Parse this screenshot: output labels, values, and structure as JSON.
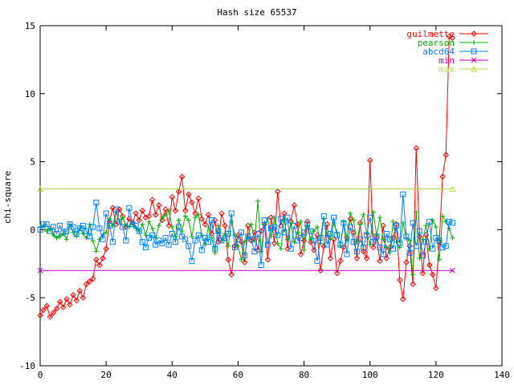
{
  "chart_data": {
    "type": "line",
    "title": "Hash size 65537",
    "xlabel": "",
    "ylabel": "chi-square",
    "xlim": [
      0,
      140
    ],
    "ylim": [
      -10,
      15
    ],
    "xticks": [
      0,
      20,
      40,
      60,
      80,
      100,
      120,
      140
    ],
    "yticks": [
      -10,
      -5,
      0,
      5,
      10,
      15
    ],
    "grid": false,
    "legend_position": "top-right",
    "series": [
      {
        "name": "guilmette",
        "color": "#ff0000",
        "marker": "diamond",
        "x": [
          0,
          1,
          2,
          3,
          4,
          5,
          6,
          7,
          8,
          9,
          10,
          11,
          12,
          13,
          14,
          15,
          16,
          17,
          18,
          19,
          20,
          21,
          22,
          23,
          24,
          25,
          26,
          27,
          28,
          29,
          30,
          31,
          32,
          33,
          34,
          35,
          36,
          37,
          38,
          39,
          40,
          41,
          42,
          43,
          44,
          45,
          46,
          47,
          48,
          49,
          50,
          51,
          52,
          53,
          54,
          55,
          56,
          57,
          58,
          59,
          60,
          61,
          62,
          63,
          64,
          65,
          66,
          67,
          68,
          69,
          70,
          71,
          72,
          73,
          74,
          75,
          76,
          77,
          78,
          79,
          80,
          81,
          82,
          83,
          84,
          85,
          86,
          87,
          88,
          89,
          90,
          91,
          92,
          93,
          94,
          95,
          96,
          97,
          98,
          99,
          100,
          101,
          102,
          103,
          104,
          105,
          106,
          107,
          108,
          109,
          110,
          111,
          112,
          113,
          114,
          115,
          116,
          117,
          118,
          119,
          120,
          121,
          122,
          123,
          124,
          125
        ],
        "y": [
          -6.3,
          -5.9,
          -5.6,
          -6.4,
          -6.1,
          -5.8,
          -5.3,
          -5.7,
          -5.1,
          -5.5,
          -4.8,
          -5.2,
          -4.5,
          -5.0,
          -4.0,
          -3.8,
          -3.6,
          -2.2,
          -2.6,
          -2.1,
          -1.4,
          0.6,
          1.6,
          0.4,
          1.5,
          1.0,
          0.2,
          0.8,
          0.5,
          1.2,
          0.7,
          1.4,
          0.9,
          1.0,
          2.2,
          1.1,
          1.8,
          0.7,
          1.5,
          0.3,
          2.4,
          1.4,
          2.8,
          3.9,
          1.4,
          2.6,
          2.0,
          1.2,
          2.3,
          0.8,
          0.4,
          1.1,
          -0.3,
          0.7,
          -0.9,
          1.2,
          0.3,
          -2.2,
          -3.3,
          -1.2,
          -0.4,
          -0.9,
          -2.4,
          0.3,
          -0.8,
          -0.2,
          -1.5,
          -0.1,
          0.4,
          -2.2,
          0.9,
          -1.0,
          2.8,
          0.3,
          1.2,
          -1.4,
          0.6,
          1.8,
          0.4,
          -1.8,
          -0.8,
          0.6,
          -0.9,
          -1.5,
          -0.4,
          -3.0,
          -1.2,
          0.4,
          -2.1,
          -0.7,
          -3.2,
          -2.3,
          -1.3,
          -0.6,
          0.8,
          -0.2,
          -2.1,
          0.5,
          -1.6,
          -2.1,
          5.1,
          -1.3,
          -0.6,
          -2.3,
          0.3,
          -2.1,
          -1.3,
          -0.6,
          0.4,
          -3.7,
          -5.1,
          -2.4,
          -1.2,
          -4.0,
          6.0,
          -0.5,
          -3.2,
          -0.4,
          -2.6,
          -3.3,
          -4.3,
          -0.9,
          3.9,
          5.5,
          14.2,
          14.1
        ]
      },
      {
        "name": "pearson",
        "color": "#00b000",
        "marker": "plus",
        "x": [
          0,
          1,
          2,
          3,
          4,
          5,
          6,
          7,
          8,
          9,
          10,
          11,
          12,
          13,
          14,
          15,
          16,
          17,
          18,
          19,
          20,
          21,
          22,
          23,
          24,
          25,
          26,
          27,
          28,
          29,
          30,
          31,
          32,
          33,
          34,
          35,
          36,
          37,
          38,
          39,
          40,
          41,
          42,
          43,
          44,
          45,
          46,
          47,
          48,
          49,
          50,
          51,
          52,
          53,
          54,
          55,
          56,
          57,
          58,
          59,
          60,
          61,
          62,
          63,
          64,
          65,
          66,
          67,
          68,
          69,
          70,
          71,
          72,
          73,
          74,
          75,
          76,
          77,
          78,
          79,
          80,
          81,
          82,
          83,
          84,
          85,
          86,
          87,
          88,
          89,
          90,
          91,
          92,
          93,
          94,
          95,
          96,
          97,
          98,
          99,
          100,
          101,
          102,
          103,
          104,
          105,
          106,
          107,
          108,
          109,
          110,
          111,
          112,
          113,
          114,
          115,
          116,
          117,
          118,
          119,
          120,
          121,
          122,
          123,
          124,
          125
        ],
        "y": [
          0.2,
          0.3,
          -0.1,
          0.1,
          -0.4,
          -0.6,
          -0.5,
          -0.3,
          -0.7,
          0.4,
          -0.2,
          -0.5,
          0.1,
          -0.3,
          -0.6,
          0.4,
          -0.8,
          -1.6,
          -0.7,
          -0.4,
          -0.2,
          0.8,
          0.3,
          1.3,
          0.6,
          0.9,
          0.3,
          0.2,
          0.5,
          0.1,
          -0.1,
          0.4,
          -0.4,
          0.6,
          0.1,
          -0.6,
          0.3,
          0.9,
          1.1,
          1.4,
          0.2,
          -0.5,
          0.7,
          -0.1,
          1.0,
          0.7,
          -0.5,
          0.9,
          1.1,
          -0.4,
          -1.1,
          0.2,
          -0.6,
          -1.7,
          0.3,
          -0.8,
          -0.3,
          -1.2,
          0.6,
          -0.4,
          -1.2,
          -2.2,
          -0.9,
          -0.5,
          0.4,
          -0.8,
          2.1,
          -1.6,
          0.4,
          0.8,
          -0.5,
          0.9,
          -1.0,
          -1.4,
          0.8,
          -0.7,
          0.5,
          -0.9,
          -0.2,
          0.6,
          -1.5,
          0.3,
          -0.7,
          -0.1,
          0.2,
          -1.0,
          0.8,
          -0.4,
          -0.7,
          0.5,
          -0.2,
          -1.2,
          0.6,
          -0.8,
          1.2,
          0.7,
          -0.9,
          0.4,
          1.1,
          -0.3,
          -1.1,
          1.3,
          -0.4,
          0.9,
          -0.7,
          -1.3,
          -1.7,
          0.6,
          -0.9,
          -1.3,
          0.5,
          -0.6,
          -0.8,
          -3.3,
          1.3,
          -2.1,
          -0.7,
          0.3,
          -1.4,
          0.7,
          0.2,
          -2.2,
          1.0,
          0.6,
          0.1,
          -0.6
        ]
      },
      {
        "name": "abcd64",
        "color": "#0080ff",
        "marker": "square",
        "x": [
          0,
          1,
          2,
          3,
          4,
          5,
          6,
          7,
          8,
          9,
          10,
          11,
          12,
          13,
          14,
          15,
          16,
          17,
          18,
          19,
          20,
          21,
          22,
          23,
          24,
          25,
          26,
          27,
          28,
          29,
          30,
          31,
          32,
          33,
          34,
          35,
          36,
          37,
          38,
          39,
          40,
          41,
          42,
          43,
          44,
          45,
          46,
          47,
          48,
          49,
          50,
          51,
          52,
          53,
          54,
          55,
          56,
          57,
          58,
          59,
          60,
          61,
          62,
          63,
          64,
          65,
          66,
          67,
          68,
          69,
          70,
          71,
          72,
          73,
          74,
          75,
          76,
          77,
          78,
          79,
          80,
          81,
          82,
          83,
          84,
          85,
          86,
          87,
          88,
          89,
          90,
          91,
          92,
          93,
          94,
          95,
          96,
          97,
          98,
          99,
          100,
          101,
          102,
          103,
          104,
          105,
          106,
          107,
          108,
          109,
          110,
          111,
          112,
          113,
          114,
          115,
          116,
          117,
          118,
          119,
          120,
          121,
          122,
          123,
          124,
          125
        ],
        "y": [
          0.0,
          0.4,
          0.4,
          -0.1,
          0.2,
          -0.3,
          0.3,
          -0.2,
          -0.1,
          0.4,
          0.2,
          -0.3,
          0.1,
          0.3,
          -0.1,
          -0.5,
          0.2,
          2.0,
          0.1,
          -0.7,
          1.2,
          0.3,
          -0.9,
          1.5,
          0.6,
          0.2,
          -0.8,
          1.6,
          0.4,
          0.3,
          -0.1,
          -0.9,
          -1.3,
          -0.6,
          -0.4,
          -1.1,
          -0.8,
          -1.0,
          -0.6,
          -1.1,
          -0.3,
          -0.9,
          0.2,
          -0.5,
          -0.7,
          -1.2,
          -2.3,
          -0.8,
          -0.4,
          -1.5,
          -0.6,
          -0.9,
          0.7,
          -1.4,
          -0.1,
          -0.8,
          -0.6,
          -0.3,
          1.2,
          -1.3,
          -0.7,
          -0.2,
          -1.9,
          -0.5,
          -0.7,
          -1.6,
          -0.3,
          -2.6,
          0.7,
          -1.1,
          0.1,
          0.2,
          -0.4,
          0.8,
          -0.2,
          0.9,
          -1.4,
          0.3,
          -0.8,
          -0.6,
          -0.2,
          0.4,
          -0.1,
          -0.8,
          -2.3,
          -0.6,
          1.0,
          -1.1,
          -0.3,
          0.9,
          -0.4,
          -1.1,
          0.5,
          -1.8,
          0.2,
          -0.9,
          -1.6,
          -0.7,
          -1.3,
          -0.4,
          0.9,
          -0.9,
          -0.5,
          -1.3,
          -1.8,
          -0.3,
          -0.7,
          -1.4,
          0.3,
          -1.0,
          2.6,
          -0.5,
          -1.7,
          0.5,
          -1.2,
          -0.1,
          -1.9,
          -0.9,
          0.6,
          -1.4,
          -0.6,
          -0.8,
          -1.3,
          -1.2,
          0.6,
          0.5
        ]
      },
      {
        "name": "min",
        "color": "#c000c0",
        "marker": "x",
        "x": [
          0,
          125
        ],
        "y": [
          -3,
          -3
        ]
      },
      {
        "name": "max",
        "color": "#b0e040",
        "marker": "triangle",
        "x": [
          0,
          125
        ],
        "y": [
          3,
          3
        ]
      }
    ]
  }
}
